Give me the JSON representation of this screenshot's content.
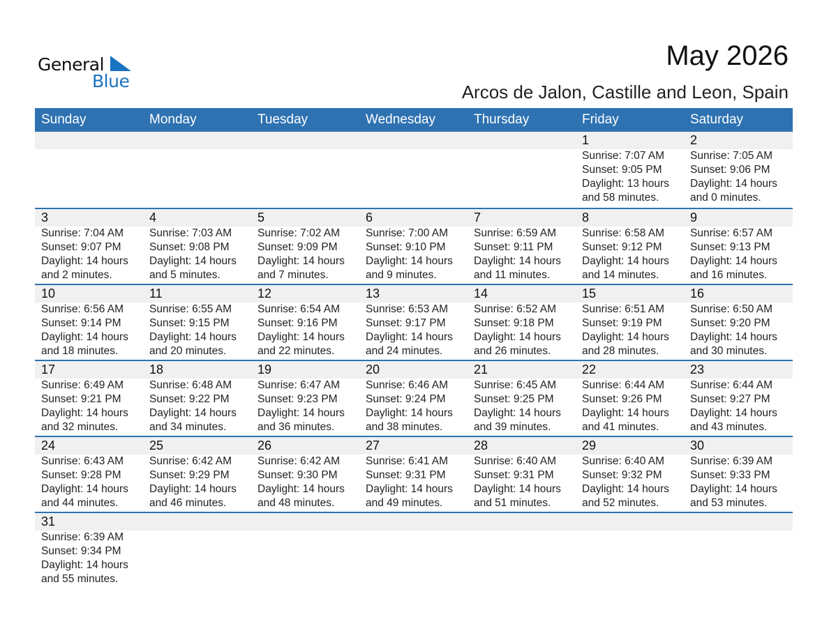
{
  "logo": {
    "word1": "General",
    "word2": "Blue",
    "accent": "#1a73c0"
  },
  "title": "May 2026",
  "location": "Arcos de Jalon, Castille and Leon, Spain",
  "colors": {
    "header_bg": "#2e72b2",
    "strip_bg": "#f0f0f0"
  },
  "weekdays": [
    "Sunday",
    "Monday",
    "Tuesday",
    "Wednesday",
    "Thursday",
    "Friday",
    "Saturday"
  ],
  "weeks": [
    [
      null,
      null,
      null,
      null,
      null,
      {
        "day": "1",
        "sunrise": "Sunrise: 7:07 AM",
        "sunset": "Sunset: 9:05 PM",
        "daylight": "Daylight: 13 hours",
        "minutes": "and 58 minutes."
      },
      {
        "day": "2",
        "sunrise": "Sunrise: 7:05 AM",
        "sunset": "Sunset: 9:06 PM",
        "daylight": "Daylight: 14 hours",
        "minutes": "and 0 minutes."
      }
    ],
    [
      {
        "day": "3",
        "sunrise": "Sunrise: 7:04 AM",
        "sunset": "Sunset: 9:07 PM",
        "daylight": "Daylight: 14 hours",
        "minutes": "and 2 minutes."
      },
      {
        "day": "4",
        "sunrise": "Sunrise: 7:03 AM",
        "sunset": "Sunset: 9:08 PM",
        "daylight": "Daylight: 14 hours",
        "minutes": "and 5 minutes."
      },
      {
        "day": "5",
        "sunrise": "Sunrise: 7:02 AM",
        "sunset": "Sunset: 9:09 PM",
        "daylight": "Daylight: 14 hours",
        "minutes": "and 7 minutes."
      },
      {
        "day": "6",
        "sunrise": "Sunrise: 7:00 AM",
        "sunset": "Sunset: 9:10 PM",
        "daylight": "Daylight: 14 hours",
        "minutes": "and 9 minutes."
      },
      {
        "day": "7",
        "sunrise": "Sunrise: 6:59 AM",
        "sunset": "Sunset: 9:11 PM",
        "daylight": "Daylight: 14 hours",
        "minutes": "and 11 minutes."
      },
      {
        "day": "8",
        "sunrise": "Sunrise: 6:58 AM",
        "sunset": "Sunset: 9:12 PM",
        "daylight": "Daylight: 14 hours",
        "minutes": "and 14 minutes."
      },
      {
        "day": "9",
        "sunrise": "Sunrise: 6:57 AM",
        "sunset": "Sunset: 9:13 PM",
        "daylight": "Daylight: 14 hours",
        "minutes": "and 16 minutes."
      }
    ],
    [
      {
        "day": "10",
        "sunrise": "Sunrise: 6:56 AM",
        "sunset": "Sunset: 9:14 PM",
        "daylight": "Daylight: 14 hours",
        "minutes": "and 18 minutes."
      },
      {
        "day": "11",
        "sunrise": "Sunrise: 6:55 AM",
        "sunset": "Sunset: 9:15 PM",
        "daylight": "Daylight: 14 hours",
        "minutes": "and 20 minutes."
      },
      {
        "day": "12",
        "sunrise": "Sunrise: 6:54 AM",
        "sunset": "Sunset: 9:16 PM",
        "daylight": "Daylight: 14 hours",
        "minutes": "and 22 minutes."
      },
      {
        "day": "13",
        "sunrise": "Sunrise: 6:53 AM",
        "sunset": "Sunset: 9:17 PM",
        "daylight": "Daylight: 14 hours",
        "minutes": "and 24 minutes."
      },
      {
        "day": "14",
        "sunrise": "Sunrise: 6:52 AM",
        "sunset": "Sunset: 9:18 PM",
        "daylight": "Daylight: 14 hours",
        "minutes": "and 26 minutes."
      },
      {
        "day": "15",
        "sunrise": "Sunrise: 6:51 AM",
        "sunset": "Sunset: 9:19 PM",
        "daylight": "Daylight: 14 hours",
        "minutes": "and 28 minutes."
      },
      {
        "day": "16",
        "sunrise": "Sunrise: 6:50 AM",
        "sunset": "Sunset: 9:20 PM",
        "daylight": "Daylight: 14 hours",
        "minutes": "and 30 minutes."
      }
    ],
    [
      {
        "day": "17",
        "sunrise": "Sunrise: 6:49 AM",
        "sunset": "Sunset: 9:21 PM",
        "daylight": "Daylight: 14 hours",
        "minutes": "and 32 minutes."
      },
      {
        "day": "18",
        "sunrise": "Sunrise: 6:48 AM",
        "sunset": "Sunset: 9:22 PM",
        "daylight": "Daylight: 14 hours",
        "minutes": "and 34 minutes."
      },
      {
        "day": "19",
        "sunrise": "Sunrise: 6:47 AM",
        "sunset": "Sunset: 9:23 PM",
        "daylight": "Daylight: 14 hours",
        "minutes": "and 36 minutes."
      },
      {
        "day": "20",
        "sunrise": "Sunrise: 6:46 AM",
        "sunset": "Sunset: 9:24 PM",
        "daylight": "Daylight: 14 hours",
        "minutes": "and 38 minutes."
      },
      {
        "day": "21",
        "sunrise": "Sunrise: 6:45 AM",
        "sunset": "Sunset: 9:25 PM",
        "daylight": "Daylight: 14 hours",
        "minutes": "and 39 minutes."
      },
      {
        "day": "22",
        "sunrise": "Sunrise: 6:44 AM",
        "sunset": "Sunset: 9:26 PM",
        "daylight": "Daylight: 14 hours",
        "minutes": "and 41 minutes."
      },
      {
        "day": "23",
        "sunrise": "Sunrise: 6:44 AM",
        "sunset": "Sunset: 9:27 PM",
        "daylight": "Daylight: 14 hours",
        "minutes": "and 43 minutes."
      }
    ],
    [
      {
        "day": "24",
        "sunrise": "Sunrise: 6:43 AM",
        "sunset": "Sunset: 9:28 PM",
        "daylight": "Daylight: 14 hours",
        "minutes": "and 44 minutes."
      },
      {
        "day": "25",
        "sunrise": "Sunrise: 6:42 AM",
        "sunset": "Sunset: 9:29 PM",
        "daylight": "Daylight: 14 hours",
        "minutes": "and 46 minutes."
      },
      {
        "day": "26",
        "sunrise": "Sunrise: 6:42 AM",
        "sunset": "Sunset: 9:30 PM",
        "daylight": "Daylight: 14 hours",
        "minutes": "and 48 minutes."
      },
      {
        "day": "27",
        "sunrise": "Sunrise: 6:41 AM",
        "sunset": "Sunset: 9:31 PM",
        "daylight": "Daylight: 14 hours",
        "minutes": "and 49 minutes."
      },
      {
        "day": "28",
        "sunrise": "Sunrise: 6:40 AM",
        "sunset": "Sunset: 9:31 PM",
        "daylight": "Daylight: 14 hours",
        "minutes": "and 51 minutes."
      },
      {
        "day": "29",
        "sunrise": "Sunrise: 6:40 AM",
        "sunset": "Sunset: 9:32 PM",
        "daylight": "Daylight: 14 hours",
        "minutes": "and 52 minutes."
      },
      {
        "day": "30",
        "sunrise": "Sunrise: 6:39 AM",
        "sunset": "Sunset: 9:33 PM",
        "daylight": "Daylight: 14 hours",
        "minutes": "and 53 minutes."
      }
    ],
    [
      {
        "day": "31",
        "sunrise": "Sunrise: 6:39 AM",
        "sunset": "Sunset: 9:34 PM",
        "daylight": "Daylight: 14 hours",
        "minutes": "and 55 minutes."
      },
      null,
      null,
      null,
      null,
      null,
      null
    ]
  ]
}
